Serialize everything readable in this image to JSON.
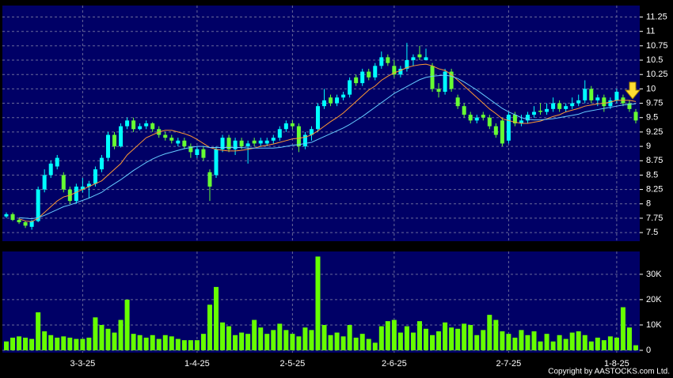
{
  "chart_data": {
    "type": "candlestick",
    "candles": [
      [
        7.78,
        7.85,
        7.75,
        7.82
      ],
      [
        7.82,
        7.85,
        7.7,
        7.72
      ],
      [
        7.72,
        7.75,
        7.65,
        7.68
      ],
      [
        7.68,
        7.7,
        7.58,
        7.62
      ],
      [
        7.6,
        7.72,
        7.55,
        7.7
      ],
      [
        7.7,
        8.3,
        7.68,
        8.25
      ],
      [
        8.25,
        8.6,
        8.2,
        8.5
      ],
      [
        8.5,
        8.75,
        8.45,
        8.7
      ],
      [
        8.65,
        8.85,
        8.6,
        8.8
      ],
      [
        8.5,
        8.55,
        8.2,
        8.25
      ],
      [
        8.25,
        8.3,
        8.0,
        8.05
      ],
      [
        8.05,
        8.35,
        8.0,
        8.3
      ],
      [
        8.25,
        8.45,
        8.2,
        8.3
      ],
      [
        8.3,
        8.4,
        8.1,
        8.35
      ],
      [
        8.35,
        8.65,
        8.3,
        8.6
      ],
      [
        8.6,
        8.85,
        8.55,
        8.8
      ],
      [
        8.8,
        9.25,
        8.75,
        9.2
      ],
      [
        9.2,
        9.25,
        8.95,
        9.0
      ],
      [
        9.0,
        9.4,
        8.98,
        9.35
      ],
      [
        9.35,
        9.5,
        9.3,
        9.45
      ],
      [
        9.45,
        9.5,
        9.25,
        9.3
      ],
      [
        9.3,
        9.4,
        9.28,
        9.35
      ],
      [
        9.35,
        9.45,
        9.3,
        9.4
      ],
      [
        9.4,
        9.42,
        9.25,
        9.3
      ],
      [
        9.3,
        9.35,
        9.15,
        9.2
      ],
      [
        9.2,
        9.25,
        9.1,
        9.15
      ],
      [
        9.15,
        9.2,
        9.05,
        9.1
      ],
      [
        9.05,
        9.15,
        9.0,
        9.1
      ],
      [
        9.1,
        9.15,
        8.95,
        9.0
      ],
      [
        9.0,
        9.05,
        8.8,
        8.9
      ],
      [
        8.85,
        9.0,
        8.8,
        8.95
      ],
      [
        8.95,
        9.0,
        8.75,
        8.8
      ],
      [
        8.55,
        8.6,
        8.05,
        8.3
      ],
      [
        8.5,
        9.0,
        8.45,
        8.95
      ],
      [
        8.95,
        9.2,
        8.9,
        9.15
      ],
      [
        9.15,
        9.2,
        8.9,
        8.95
      ],
      [
        8.95,
        9.15,
        8.85,
        9.1
      ],
      [
        9.1,
        9.15,
        8.95,
        9.0
      ],
      [
        9.0,
        9.1,
        8.7,
        9.05
      ],
      [
        9.1,
        9.15,
        9.0,
        9.05
      ],
      [
        9.05,
        9.15,
        9.0,
        9.1
      ],
      [
        9.05,
        9.15,
        9.0,
        9.1
      ],
      [
        9.1,
        9.2,
        9.05,
        9.15
      ],
      [
        9.15,
        9.35,
        9.1,
        9.3
      ],
      [
        9.3,
        9.45,
        9.25,
        9.4
      ],
      [
        9.4,
        9.45,
        9.3,
        9.35
      ],
      [
        9.35,
        9.4,
        8.9,
        9.0
      ],
      [
        9.0,
        9.25,
        8.95,
        9.2
      ],
      [
        9.2,
        9.35,
        9.1,
        9.3
      ],
      [
        9.3,
        9.75,
        9.25,
        9.7
      ],
      [
        9.7,
        10.0,
        9.65,
        9.8
      ],
      [
        9.85,
        9.9,
        9.7,
        9.75
      ],
      [
        9.75,
        9.9,
        9.7,
        9.85
      ],
      [
        9.85,
        9.95,
        9.8,
        9.9
      ],
      [
        9.9,
        10.2,
        9.85,
        10.15
      ],
      [
        10.2,
        10.25,
        10.05,
        10.1
      ],
      [
        10.1,
        10.35,
        10.05,
        10.3
      ],
      [
        10.3,
        10.35,
        10.15,
        10.2
      ],
      [
        10.2,
        10.45,
        10.15,
        10.4
      ],
      [
        10.4,
        10.65,
        10.35,
        10.55
      ],
      [
        10.55,
        10.6,
        10.4,
        10.45
      ],
      [
        10.4,
        10.5,
        10.2,
        10.25
      ],
      [
        10.25,
        10.4,
        10.2,
        10.35
      ],
      [
        10.35,
        10.8,
        10.3,
        10.5
      ],
      [
        10.5,
        10.6,
        10.4,
        10.55
      ],
      [
        10.6,
        10.75,
        10.5,
        10.55
      ],
      [
        10.5,
        10.7,
        10.5,
        10.55
      ],
      [
        10.4,
        10.45,
        9.95,
        10.0
      ],
      [
        10.0,
        10.1,
        9.85,
        9.95
      ],
      [
        9.95,
        10.35,
        9.9,
        10.3
      ],
      [
        10.3,
        10.35,
        9.95,
        10.0
      ],
      [
        9.85,
        9.9,
        9.65,
        9.7
      ],
      [
        9.7,
        9.75,
        9.5,
        9.55
      ],
      [
        9.55,
        9.6,
        9.4,
        9.45
      ],
      [
        9.45,
        9.55,
        9.4,
        9.5
      ],
      [
        9.55,
        9.6,
        9.45,
        9.5
      ],
      [
        9.5,
        9.55,
        9.3,
        9.35
      ],
      [
        9.35,
        9.4,
        9.15,
        9.2
      ],
      [
        9.45,
        9.5,
        9.0,
        9.05
      ],
      [
        9.1,
        9.6,
        9.05,
        9.55
      ],
      [
        9.55,
        9.6,
        9.35,
        9.4
      ],
      [
        9.4,
        9.55,
        9.35,
        9.45
      ],
      [
        9.45,
        9.6,
        9.4,
        9.55
      ],
      [
        9.55,
        9.7,
        9.5,
        9.6
      ],
      [
        9.62,
        9.75,
        9.55,
        9.6
      ],
      [
        9.6,
        9.75,
        9.55,
        9.65
      ],
      [
        9.65,
        9.85,
        9.6,
        9.75
      ],
      [
        9.75,
        9.8,
        9.6,
        9.65
      ],
      [
        9.65,
        9.75,
        9.6,
        9.7
      ],
      [
        9.7,
        9.85,
        9.65,
        9.75
      ],
      [
        9.75,
        9.9,
        9.7,
        9.8
      ],
      [
        9.8,
        10.15,
        9.75,
        10.0
      ],
      [
        10.0,
        10.05,
        9.75,
        9.8
      ],
      [
        9.8,
        9.9,
        9.7,
        9.85
      ],
      [
        9.85,
        9.9,
        9.6,
        9.7
      ],
      [
        9.7,
        9.85,
        9.65,
        9.8
      ],
      [
        9.8,
        10.0,
        9.75,
        9.95
      ],
      [
        9.85,
        9.9,
        9.7,
        9.75
      ],
      [
        9.75,
        9.8,
        9.6,
        9.65
      ],
      [
        9.6,
        9.65,
        9.4,
        9.45
      ]
    ],
    "up_color": "#00ffff",
    "down_color": "#66ff33",
    "ma": [
      {
        "color": "#ff9933",
        "values": [
          null,
          null,
          7.74,
          7.7,
          7.69,
          7.75,
          7.85,
          7.95,
          8.05,
          8.12,
          8.15,
          8.2,
          8.25,
          8.3,
          8.35,
          8.4,
          8.5,
          8.6,
          8.7,
          8.85,
          8.95,
          9.05,
          9.15,
          9.2,
          9.25,
          9.28,
          9.28,
          9.25,
          9.22,
          9.18,
          9.12,
          9.05,
          8.98,
          8.95,
          8.93,
          8.92,
          8.92,
          8.93,
          8.95,
          8.97,
          9.0,
          9.02,
          9.04,
          9.07,
          9.1,
          9.13,
          9.14,
          9.16,
          9.2,
          9.27,
          9.35,
          9.43,
          9.5,
          9.58,
          9.68,
          9.78,
          9.88,
          9.98,
          10.05,
          10.15,
          10.22,
          10.28,
          10.32,
          10.37,
          10.4,
          10.42,
          10.43,
          10.4,
          10.35,
          10.32,
          10.25,
          10.15,
          10.05,
          9.95,
          9.85,
          9.75,
          9.65,
          9.57,
          9.48,
          9.45,
          9.42,
          9.4,
          9.4,
          9.42,
          9.44,
          9.48,
          9.52,
          9.55,
          9.6,
          9.63,
          9.66,
          9.7,
          9.72,
          9.74,
          9.75,
          9.77,
          9.8,
          9.8,
          9.8,
          9.78
        ]
      },
      {
        "color": "#66ccff",
        "values": [
          null,
          null,
          7.76,
          7.75,
          7.74,
          7.76,
          7.8,
          7.85,
          7.9,
          7.95,
          7.98,
          8.02,
          8.06,
          8.1,
          8.15,
          8.2,
          8.28,
          8.35,
          8.42,
          8.5,
          8.58,
          8.65,
          8.72,
          8.78,
          8.83,
          8.87,
          8.9,
          8.93,
          8.96,
          8.98,
          9.0,
          9.0,
          8.98,
          8.98,
          8.98,
          8.98,
          8.98,
          8.98,
          8.97,
          8.97,
          8.97,
          8.97,
          8.97,
          8.98,
          9.0,
          9.02,
          9.03,
          9.05,
          9.07,
          9.12,
          9.17,
          9.22,
          9.27,
          9.32,
          9.38,
          9.45,
          9.52,
          9.6,
          9.68,
          9.76,
          9.84,
          9.92,
          9.98,
          10.04,
          10.1,
          10.16,
          10.2,
          10.22,
          10.23,
          10.24,
          10.22,
          10.18,
          10.12,
          10.05,
          9.98,
          9.9,
          9.82,
          9.74,
          9.66,
          9.6,
          9.55,
          9.5,
          9.47,
          9.46,
          9.46,
          9.47,
          9.48,
          9.5,
          9.52,
          9.54,
          9.56,
          9.6,
          9.62,
          9.64,
          9.66,
          9.68,
          9.7,
          9.72,
          9.73,
          9.74
        ]
      }
    ],
    "ylim": [
      7.35,
      11.45
    ],
    "yticks": [
      7.5,
      7.75,
      8,
      8.25,
      8.5,
      8.75,
      9,
      9.25,
      9.5,
      9.75,
      10,
      10.25,
      10.5,
      10.75,
      11,
      11.25
    ],
    "xticks": [
      {
        "value": 12,
        "label": "3-3-25"
      },
      {
        "value": 30,
        "label": "1-4-25"
      },
      {
        "value": 45,
        "label": "2-5-25"
      },
      {
        "value": 61,
        "label": "2-6-25"
      },
      {
        "value": 79,
        "label": "2-7-25"
      },
      {
        "value": 96,
        "label": "1-8-25"
      }
    ],
    "grid": true,
    "volume": {
      "color": "#66ff00",
      "ylim": [
        0,
        39000
      ],
      "yticks": [
        0,
        {
          "value": 10000,
          "label": "10K"
        },
        {
          "value": 20000,
          "label": "20K"
        },
        {
          "value": 30000,
          "label": "30K"
        }
      ],
      "values": [
        3500,
        5000,
        5500,
        5000,
        4500,
        15000,
        7500,
        6000,
        5000,
        5500,
        5000,
        4500,
        4500,
        5000,
        13000,
        10000,
        8500,
        7000,
        12000,
        20000,
        6500,
        6000,
        5000,
        6000,
        4500,
        6000,
        5500,
        4500,
        4000,
        4000,
        4000,
        6500,
        18000,
        25000,
        11000,
        9500,
        6000,
        7000,
        6500,
        12000,
        9000,
        6500,
        8000,
        10500,
        8000,
        6500,
        5500,
        9000,
        8000,
        37000,
        10000,
        6000,
        7000,
        5500,
        10000,
        5000,
        6500,
        4500,
        3000,
        9500,
        11500,
        12000,
        7000,
        9500,
        7000,
        11500,
        8500,
        6000,
        7500,
        11000,
        9000,
        8500,
        10500,
        10000,
        6000,
        8000,
        14000,
        12000,
        7500,
        6500,
        5000,
        8000,
        6000,
        7500,
        3500,
        6500,
        3500,
        6000,
        4500,
        7000,
        7500,
        6000,
        3500,
        5000,
        4000,
        5500,
        5000,
        17000,
        9000,
        2000
      ]
    }
  },
  "footer": {
    "copyright": "Copyright by AASTOCKS.com Ltd."
  }
}
